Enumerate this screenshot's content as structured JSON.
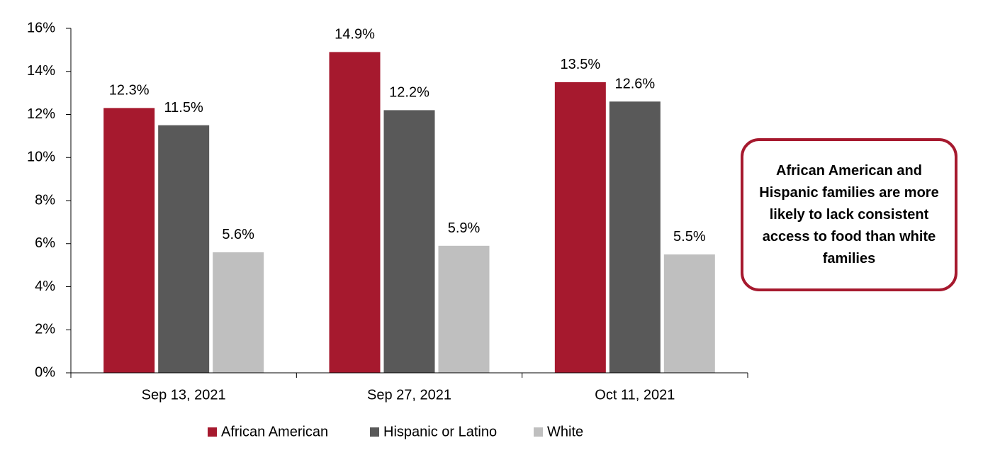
{
  "chart_data": {
    "type": "bar",
    "categories": [
      "Sep 13, 2021",
      "Sep 27, 2021",
      "Oct 11, 2021"
    ],
    "series": [
      {
        "name": "African American",
        "color": "#a6192e",
        "values": [
          12.3,
          14.9,
          13.5
        ],
        "value_labels": [
          "12.3%",
          "14.9%",
          "13.5%"
        ]
      },
      {
        "name": "Hispanic or Latino",
        "color": "#595959",
        "values": [
          11.5,
          12.2,
          12.6
        ],
        "value_labels": [
          "11.5%",
          "12.2%",
          "12.6%"
        ]
      },
      {
        "name": "White",
        "color": "#bfbfbf",
        "values": [
          5.6,
          5.9,
          5.5
        ],
        "value_labels": [
          "5.6%",
          "5.9%",
          "5.5%"
        ]
      }
    ],
    "ylim": [
      0,
      16
    ],
    "yticks": [
      {
        "value": 0,
        "label": "0%"
      },
      {
        "value": 2,
        "label": "2%"
      },
      {
        "value": 4,
        "label": "4%"
      },
      {
        "value": 6,
        "label": "6%"
      },
      {
        "value": 8,
        "label": "8%"
      },
      {
        "value": 10,
        "label": "10%"
      },
      {
        "value": 12,
        "label": "12%"
      },
      {
        "value": 14,
        "label": "14%"
      },
      {
        "value": 16,
        "label": "16%"
      }
    ],
    "legend": "bottom",
    "annotation": "African American and Hispanic families are more likely to lack consistent access to food than white families"
  }
}
